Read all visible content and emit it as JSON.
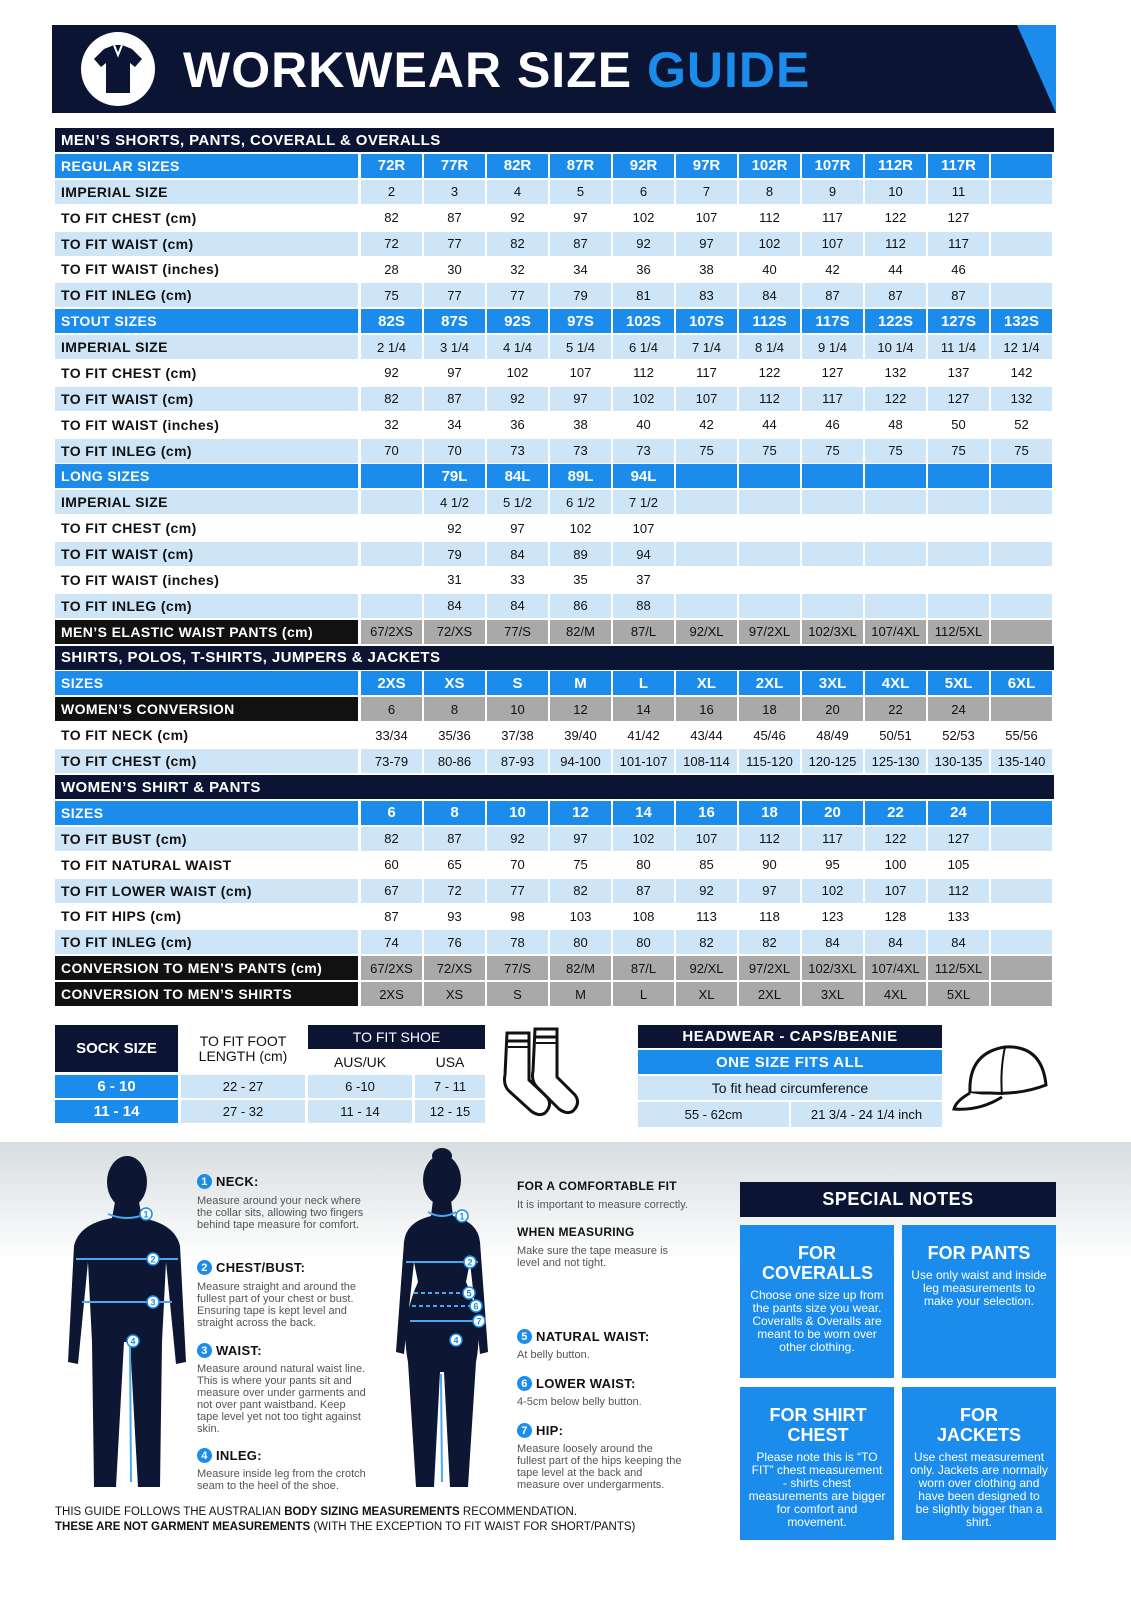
{
  "header": {
    "title": "WORKWEAR SIZE",
    "title_accent": "GUIDE"
  },
  "sections": [
    {
      "title": "MEN’S SHORTS, PANTS, COVERALL & OVERALLS",
      "rows": [
        {
          "style": "header",
          "label": "REGULAR SIZES",
          "cells": [
            "72R",
            "77R",
            "82R",
            "87R",
            "92R",
            "97R",
            "102R",
            "107R",
            "112R",
            "117R",
            null
          ]
        },
        {
          "style": "light",
          "label": "IMPERIAL SIZE",
          "cells": [
            2,
            3,
            4,
            5,
            6,
            7,
            8,
            9,
            10,
            11,
            null
          ]
        },
        {
          "style": "white",
          "label": "TO FIT CHEST (cm)",
          "cells": [
            82,
            87,
            92,
            97,
            102,
            107,
            112,
            117,
            122,
            127,
            null
          ]
        },
        {
          "style": "light",
          "label": "TO FIT WAIST (cm)",
          "cells": [
            72,
            77,
            82,
            87,
            92,
            97,
            102,
            107,
            112,
            117,
            null
          ]
        },
        {
          "style": "white",
          "label": "TO FIT WAIST (inches)",
          "cells": [
            28,
            30,
            32,
            34,
            36,
            38,
            40,
            42,
            44,
            46,
            null
          ]
        },
        {
          "style": "light",
          "label": "TO FIT INLEG (cm)",
          "cells": [
            75,
            77,
            77,
            79,
            81,
            83,
            84,
            87,
            87,
            87,
            null
          ]
        },
        {
          "style": "header",
          "label": "STOUT SIZES",
          "cells": [
            "82S",
            "87S",
            "92S",
            "97S",
            "102S",
            "107S",
            "112S",
            "117S",
            "122S",
            "127S",
            "132S"
          ]
        },
        {
          "style": "light",
          "label": "IMPERIAL SIZE",
          "cells": [
            "2 1/4",
            "3 1/4",
            "4 1/4",
            "5 1/4",
            "6 1/4",
            "7 1/4",
            "8 1/4",
            "9 1/4",
            "10 1/4",
            "11 1/4",
            "12 1/4"
          ]
        },
        {
          "style": "white",
          "label": "TO FIT CHEST (cm)",
          "cells": [
            92,
            97,
            102,
            107,
            112,
            117,
            122,
            127,
            132,
            137,
            142
          ]
        },
        {
          "style": "light",
          "label": "TO FIT WAIST (cm)",
          "cells": [
            82,
            87,
            92,
            97,
            102,
            107,
            112,
            117,
            122,
            127,
            132
          ]
        },
        {
          "style": "white",
          "label": "TO FIT WAIST (inches)",
          "cells": [
            32,
            34,
            36,
            38,
            40,
            42,
            44,
            46,
            48,
            50,
            52
          ]
        },
        {
          "style": "light",
          "label": "TO FIT INLEG (cm)",
          "cells": [
            70,
            70,
            73,
            73,
            73,
            75,
            75,
            75,
            75,
            75,
            75
          ]
        },
        {
          "style": "header",
          "label": "LONG SIZES",
          "cells": [
            null,
            "79L",
            "84L",
            "89L",
            "94L",
            null,
            null,
            null,
            null,
            null,
            null
          ]
        },
        {
          "style": "light",
          "label": "IMPERIAL SIZE",
          "cells": [
            null,
            "4 1/2",
            "5 1/2",
            "6 1/2",
            "7 1/2",
            null,
            null,
            null,
            null,
            null,
            null
          ]
        },
        {
          "style": "white",
          "label": "TO FIT CHEST (cm)",
          "cells": [
            null,
            92,
            97,
            102,
            107,
            null,
            null,
            null,
            null,
            null,
            null
          ]
        },
        {
          "style": "light",
          "label": "TO FIT WAIST (cm)",
          "cells": [
            null,
            79,
            84,
            89,
            94,
            null,
            null,
            null,
            null,
            null,
            null
          ]
        },
        {
          "style": "white",
          "label": "TO FIT WAIST (inches)",
          "cells": [
            null,
            31,
            33,
            35,
            37,
            null,
            null,
            null,
            null,
            null,
            null
          ]
        },
        {
          "style": "light",
          "label": "TO FIT INLEG (cm)",
          "cells": [
            null,
            84,
            84,
            86,
            88,
            null,
            null,
            null,
            null,
            null,
            null
          ]
        },
        {
          "style": "dark",
          "label": "MEN’S ELASTIC WAIST PANTS (cm)",
          "cells": [
            "67/2XS",
            "72/XS",
            "77/S",
            "82/M",
            "87/L",
            "92/XL",
            "97/2XL",
            "102/3XL",
            "107/4XL",
            "112/5XL",
            null
          ]
        }
      ]
    },
    {
      "title": "SHIRTS, POLOS, T-SHIRTS, JUMPERS & JACKETS",
      "rows": [
        {
          "style": "header",
          "label": "SIZES",
          "cells": [
            "2XS",
            "XS",
            "S",
            "M",
            "L",
            "XL",
            "2XL",
            "3XL",
            "4XL",
            "5XL",
            "6XL"
          ]
        },
        {
          "style": "dark",
          "label": "WOMEN’S CONVERSION",
          "cells": [
            6,
            8,
            10,
            12,
            14,
            16,
            18,
            20,
            22,
            24,
            null
          ]
        },
        {
          "style": "white",
          "label": "TO FIT NECK (cm)",
          "cells": [
            "33/34",
            "35/36",
            "37/38",
            "39/40",
            "41/42",
            "43/44",
            "45/46",
            "48/49",
            "50/51",
            "52/53",
            "55/56"
          ]
        },
        {
          "style": "light",
          "label": "TO FIT CHEST (cm)",
          "cells": [
            "73-79",
            "80-86",
            "87-93",
            "94-100",
            "101-107",
            "108-114",
            "115-120",
            "120-125",
            "125-130",
            "130-135",
            "135-140"
          ]
        }
      ]
    },
    {
      "title": "WOMEN’S SHIRT & PANTS",
      "rows": [
        {
          "style": "header",
          "label": "SIZES",
          "cells": [
            6,
            8,
            10,
            12,
            14,
            16,
            18,
            20,
            22,
            24,
            null
          ]
        },
        {
          "style": "light",
          "label": "TO FIT BUST (cm)",
          "cells": [
            82,
            87,
            92,
            97,
            102,
            107,
            112,
            117,
            122,
            127,
            null
          ]
        },
        {
          "style": "white",
          "label": "TO FIT NATURAL WAIST",
          "cells": [
            60,
            65,
            70,
            75,
            80,
            85,
            90,
            95,
            100,
            105,
            null
          ]
        },
        {
          "style": "light",
          "label": "TO FIT LOWER WAIST (cm)",
          "cells": [
            67,
            72,
            77,
            82,
            87,
            92,
            97,
            102,
            107,
            112,
            null
          ]
        },
        {
          "style": "white",
          "label": "TO FIT HIPS (cm)",
          "cells": [
            87,
            93,
            98,
            103,
            108,
            113,
            118,
            123,
            128,
            133,
            null
          ]
        },
        {
          "style": "light",
          "label": "TO FIT INLEG (cm)",
          "cells": [
            74,
            76,
            78,
            80,
            80,
            82,
            82,
            84,
            84,
            84,
            null
          ]
        },
        {
          "style": "dark",
          "label": "CONVERSION TO MEN’S PANTS (cm)",
          "cells": [
            "67/2XS",
            "72/XS",
            "77/S",
            "82/M",
            "87/L",
            "92/XL",
            "97/2XL",
            "102/3XL",
            "107/4XL",
            "112/5XL",
            null
          ]
        },
        {
          "style": "dark",
          "label": "CONVERSION TO MEN’S SHIRTS",
          "cells": [
            "2XS",
            "XS",
            "S",
            "M",
            "L",
            "XL",
            "2XL",
            "3XL",
            "4XL",
            "5XL",
            null
          ]
        }
      ]
    }
  ],
  "socks": {
    "size_header": "SOCK SIZE",
    "foot_header": "TO FIT FOOT LENGTH (cm)",
    "shoe_header": "TO FIT SHOE",
    "aus_header": "AUS/UK",
    "usa_header": "USA",
    "rows": [
      [
        "6 - 10",
        "22 - 27",
        "6 -10",
        "7 - 11"
      ],
      [
        "11 - 14",
        "27 - 32",
        "11 - 14",
        "12 - 15"
      ]
    ]
  },
  "headwear": {
    "title": "HEADWEAR - CAPS/BEANIE",
    "subtitle": "ONE SIZE FITS ALL",
    "label": "To fit head circumference",
    "cm": "55 - 62cm",
    "inch": "21 3/4 - 24 1/4 inch"
  },
  "measuring": [
    {
      "number": 1,
      "title": "NECK:",
      "text": "Measure around your neck where the collar sits, allowing two fingers behind tape measure for comfort."
    },
    {
      "number": 2,
      "title": "CHEST/BUST:",
      "text": "Measure straight and around the fullest part of your chest or bust. Ensuring tape is kept level and straight across the back."
    },
    {
      "number": 3,
      "title": "WAIST:",
      "text": "Measure around natural waist line. This is where your pants sit and measure over under garments and not over pant waistband. Keep tape level yet not too tight against skin."
    },
    {
      "number": 4,
      "title": "INLEG:",
      "text": "Measure inside leg from the crotch seam to the heel of the shoe."
    },
    {
      "number": 5,
      "title": "NATURAL WAIST:",
      "text": "At belly button."
    },
    {
      "number": 6,
      "title": "LOWER WAIST:",
      "text": "4-5cm below belly button."
    },
    {
      "number": 7,
      "title": "HIP:",
      "text": "Measure loosely around the fullest part of the hips keeping the tape level at the back and measure over undergarments."
    }
  ],
  "tips": [
    {
      "title": "FOR A COMFORTABLE FIT",
      "text": "It is important to measure correctly."
    },
    {
      "title": "WHEN MEASURING",
      "text": "Make sure the tape measure is level and not tight."
    }
  ],
  "special_notes": {
    "title": "SPECIAL NOTES",
    "notes": [
      {
        "title": "FOR COVERALLS",
        "text": "Choose one size up from the pants size you wear. Coveralls & Overalls are meant to be worn over other clothing."
      },
      {
        "title": "FOR PANTS",
        "text": "Use only waist and inside leg measurements to make your selection."
      },
      {
        "title": "FOR SHIRT CHEST",
        "text": "Please note this is “TO FIT” chest measurement - shirts chest measurements are bigger for comfort and movement."
      },
      {
        "title": "FOR JACKETS",
        "text": "Use chest measurement only. Jackets are normally worn over clothing and have been designed to be slightly bigger than a shirt."
      }
    ]
  },
  "footer": {
    "line1_start": "THIS GUIDE FOLLOWS THE AUSTRALIAN",
    "line1_bold": "BODY SIZING MEASUREMENTS",
    "line1_end": "RECOMMENDATION.",
    "line2_bold": "THESE ARE NOT GARMENT MEASUREMENTS",
    "line2_end": "(WITH THE EXCEPTION TO FIT WAIST FOR SHORT/PANTS)"
  }
}
